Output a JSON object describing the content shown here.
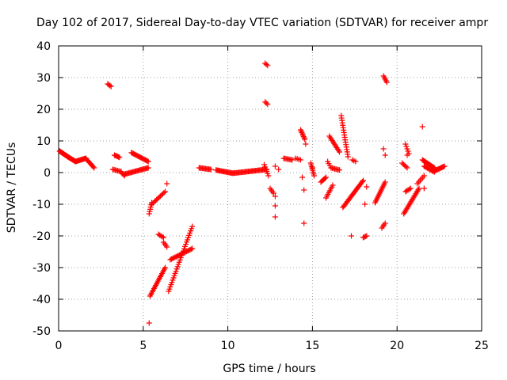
{
  "chart_data": {
    "type": "scatter",
    "title": "Day 102 of 2017, Sidereal Day-to-day VTEC variation (SDTVAR) for receiver ampr",
    "xlabel": "GPS time / hours",
    "ylabel": "SDTVAR / TECUs",
    "xlim": [
      0,
      25
    ],
    "ylim": [
      -50,
      40
    ],
    "xticks": [
      0,
      5,
      10,
      15,
      20,
      25
    ],
    "yticks": [
      -50,
      -40,
      -30,
      -20,
      -10,
      0,
      10,
      20,
      30,
      40
    ],
    "grid": true,
    "marker": "+",
    "color": "#ff0000",
    "segments": [
      {
        "x0": 0.05,
        "y0": 6.8,
        "x1": 0.6,
        "y1": 4.8,
        "n": 16
      },
      {
        "x0": 0.6,
        "y0": 4.8,
        "x1": 1.0,
        "y1": 3.5,
        "n": 10
      },
      {
        "x0": 1.0,
        "y0": 3.5,
        "x1": 1.6,
        "y1": 4.5,
        "n": 14
      },
      {
        "x0": 1.6,
        "y0": 4.5,
        "x1": 2.1,
        "y1": 1.5,
        "n": 10
      },
      {
        "x0": 2.9,
        "y0": 28.0,
        "x1": 3.1,
        "y1": 27.2,
        "n": 4
      },
      {
        "x0": 3.2,
        "y0": 1.0,
        "x1": 3.7,
        "y1": 0.3,
        "n": 8
      },
      {
        "x0": 3.3,
        "y0": 5.5,
        "x1": 3.6,
        "y1": 4.8,
        "n": 6
      },
      {
        "x0": 3.7,
        "y0": 0.0,
        "x1": 3.9,
        "y1": -1.0,
        "n": 4
      },
      {
        "x0": 3.9,
        "y0": -0.5,
        "x1": 5.3,
        "y1": 1.5,
        "n": 24
      },
      {
        "x0": 4.3,
        "y0": 6.3,
        "x1": 5.3,
        "y1": 3.5,
        "n": 18
      },
      {
        "x0": 5.35,
        "y0": -13.0,
        "x1": 5.5,
        "y1": -9.5,
        "n": 6
      },
      {
        "x0": 5.5,
        "y0": -10.0,
        "x1": 6.3,
        "y1": -6.0,
        "n": 12
      },
      {
        "x0": 5.4,
        "y0": -39.0,
        "x1": 6.3,
        "y1": -30.0,
        "n": 20
      },
      {
        "x0": 5.9,
        "y0": -19.5,
        "x1": 6.2,
        "y1": -20.5,
        "n": 5
      },
      {
        "x0": 6.2,
        "y0": -22.0,
        "x1": 6.4,
        "y1": -23.5,
        "n": 4
      },
      {
        "x0": 6.5,
        "y0": -37.5,
        "x1": 7.9,
        "y1": -17.0,
        "n": 30
      },
      {
        "x0": 6.6,
        "y0": -27.5,
        "x1": 7.9,
        "y1": -24.0,
        "n": 20
      },
      {
        "x0": 8.3,
        "y0": 1.5,
        "x1": 9.0,
        "y1": 1.0,
        "n": 12
      },
      {
        "x0": 9.3,
        "y0": 0.8,
        "x1": 10.3,
        "y1": -0.2,
        "n": 18
      },
      {
        "x0": 10.3,
        "y0": -0.2,
        "x1": 12.3,
        "y1": 1.0,
        "n": 34
      },
      {
        "x0": 12.2,
        "y0": 34.5,
        "x1": 12.35,
        "y1": 33.8,
        "n": 3
      },
      {
        "x0": 12.2,
        "y0": 22.3,
        "x1": 12.35,
        "y1": 21.6,
        "n": 3
      },
      {
        "x0": 12.15,
        "y0": 2.5,
        "x1": 12.4,
        "y1": -1.0,
        "n": 6
      },
      {
        "x0": 12.5,
        "y0": -5.0,
        "x1": 12.7,
        "y1": -6.5,
        "n": 4
      },
      {
        "x0": 13.3,
        "y0": 4.5,
        "x1": 13.8,
        "y1": 4.0,
        "n": 8
      },
      {
        "x0": 14.3,
        "y0": 13.5,
        "x1": 14.55,
        "y1": 10.5,
        "n": 8
      },
      {
        "x0": 14.0,
        "y0": 4.5,
        "x1": 14.3,
        "y1": 4.0,
        "n": 4
      },
      {
        "x0": 14.9,
        "y0": 3.0,
        "x1": 15.1,
        "y1": -1.0,
        "n": 8
      },
      {
        "x0": 15.5,
        "y0": -3.0,
        "x1": 15.8,
        "y1": -1.5,
        "n": 6
      },
      {
        "x0": 15.8,
        "y0": -8.0,
        "x1": 16.2,
        "y1": -4.0,
        "n": 8
      },
      {
        "x0": 15.9,
        "y0": 3.5,
        "x1": 16.1,
        "y1": 1.5,
        "n": 4
      },
      {
        "x0": 16.0,
        "y0": 11.5,
        "x1": 16.6,
        "y1": 6.5,
        "n": 12
      },
      {
        "x0": 16.1,
        "y0": 1.5,
        "x1": 16.6,
        "y1": 0.8,
        "n": 8
      },
      {
        "x0": 16.7,
        "y0": 18.0,
        "x1": 17.1,
        "y1": 5.0,
        "n": 18
      },
      {
        "x0": 16.8,
        "y0": -11.0,
        "x1": 18.0,
        "y1": -2.5,
        "n": 24
      },
      {
        "x0": 17.35,
        "y0": 4.0,
        "x1": 17.55,
        "y1": 3.5,
        "n": 3
      },
      {
        "x0": 18.0,
        "y0": -20.5,
        "x1": 18.2,
        "y1": -20.0,
        "n": 4
      },
      {
        "x0": 18.7,
        "y0": -9.5,
        "x1": 19.3,
        "y1": -3.0,
        "n": 14
      },
      {
        "x0": 19.1,
        "y0": -17.5,
        "x1": 19.3,
        "y1": -16.0,
        "n": 4
      },
      {
        "x0": 19.2,
        "y0": 30.5,
        "x1": 19.4,
        "y1": 28.5,
        "n": 5
      },
      {
        "x0": 20.3,
        "y0": 3.0,
        "x1": 20.6,
        "y1": 1.5,
        "n": 5
      },
      {
        "x0": 20.5,
        "y0": 9.0,
        "x1": 20.7,
        "y1": 6.0,
        "n": 5
      },
      {
        "x0": 20.4,
        "y0": -13.0,
        "x1": 21.3,
        "y1": -5.0,
        "n": 20
      },
      {
        "x0": 20.5,
        "y0": -6.0,
        "x1": 20.8,
        "y1": -5.0,
        "n": 5
      },
      {
        "x0": 21.2,
        "y0": -3.5,
        "x1": 21.6,
        "y1": -1.0,
        "n": 6
      },
      {
        "x0": 21.5,
        "y0": 4.0,
        "x1": 22.2,
        "y1": 1.5,
        "n": 14
      },
      {
        "x0": 21.6,
        "y0": 2.0,
        "x1": 22.2,
        "y1": 0.2,
        "n": 10
      },
      {
        "x0": 22.2,
        "y0": 0.5,
        "x1": 22.8,
        "y1": 2.0,
        "n": 12
      }
    ],
    "points": [
      [
        5.35,
        -47.5
      ],
      [
        6.4,
        -3.5
      ],
      [
        12.8,
        -7.5
      ],
      [
        12.8,
        -10.5
      ],
      [
        12.8,
        -14.0
      ],
      [
        12.8,
        2.0
      ],
      [
        14.4,
        -1.5
      ],
      [
        14.6,
        9.0
      ],
      [
        14.5,
        -5.5
      ],
      [
        14.5,
        -16.0
      ],
      [
        17.3,
        -20.0
      ],
      [
        18.2,
        -4.5
      ],
      [
        18.1,
        -10.0
      ],
      [
        19.2,
        7.5
      ],
      [
        19.3,
        5.5
      ],
      [
        20.6,
        5.5
      ],
      [
        21.5,
        14.5
      ],
      [
        21.6,
        -5.0
      ],
      [
        15.0,
        1.5
      ],
      [
        13.0,
        1.0
      ]
    ]
  }
}
